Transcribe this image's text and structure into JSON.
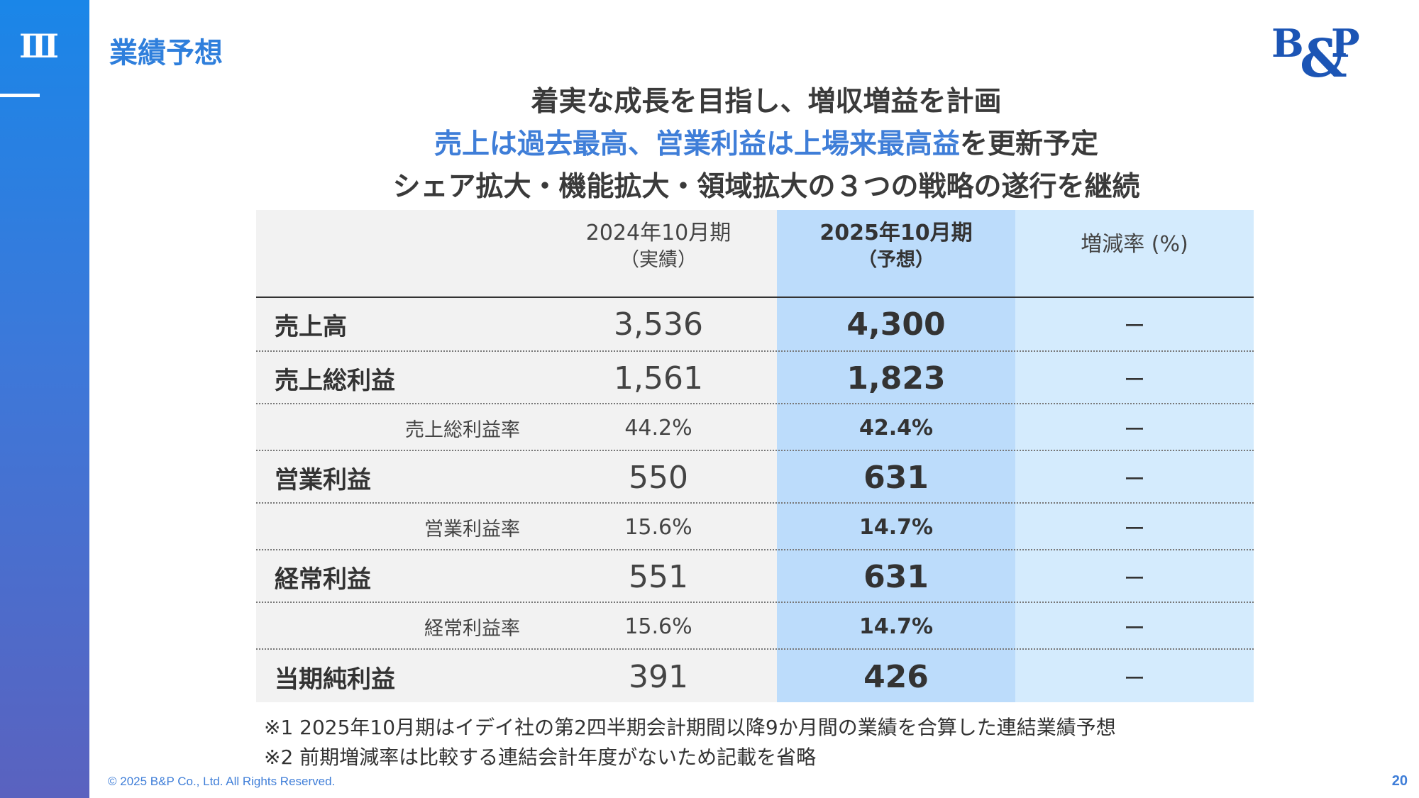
{
  "sidebar": {
    "section_number": "Ⅲ"
  },
  "header": {
    "title": "業績予想"
  },
  "logo": {
    "text": "B&P",
    "color": "#1c55b5"
  },
  "headlines": {
    "line1": "着実な成長を目指し、増収増益を計画",
    "line2_accent": "売上は過去最高、営業利益は上場来最高益",
    "line2_rest": "を更新予定",
    "line3": "シェア拡大・機能拡大・領域拡大の３つの戦略の遂行を継続"
  },
  "table": {
    "headers": {
      "fy2024": "2024年10月期",
      "fy2024_sub": "（実績）",
      "fy2025": "2025年10月期",
      "fy2025_sub": "（予想）",
      "rate": "増減率 (%)"
    },
    "rows": [
      {
        "label": "売上高",
        "fy2024": "3,536",
        "fy2025": "4,300",
        "rate": "ー"
      },
      {
        "label": "売上総利益",
        "fy2024": "1,561",
        "fy2025": "1,823",
        "rate": "ー"
      },
      {
        "label": "売上総利益率",
        "fy2024": "44.2%",
        "fy2025": "42.4%",
        "rate": "ー"
      },
      {
        "label": "営業利益",
        "fy2024": "550",
        "fy2025": "631",
        "rate": "ー"
      },
      {
        "label": "営業利益率",
        "fy2024": "15.6%",
        "fy2025": "14.7%",
        "rate": "ー"
      },
      {
        "label": "経常利益",
        "fy2024": "551",
        "fy2025": "631",
        "rate": "ー"
      },
      {
        "label": "経常利益率",
        "fy2024": "15.6%",
        "fy2025": "14.7%",
        "rate": "ー"
      },
      {
        "label": "当期純利益",
        "fy2024": "391",
        "fy2025": "426",
        "rate": "ー"
      }
    ]
  },
  "notes": {
    "note1": "※1 2025年10月期はイデイ社の第2四半期会計期間以降9か月間の業績を合算した連結業績予想",
    "note2": "※2 前期増減率は比較する連結会計年度がないため記載を省略"
  },
  "footer": {
    "copyright": "© 2025 B&P Co., Ltd. All Rights Reserved.",
    "page_number": "20"
  },
  "colors": {
    "accent": "#3f7ed8",
    "forecast_column": "#bcdcfb",
    "rate_column": "#d4ebfd"
  }
}
